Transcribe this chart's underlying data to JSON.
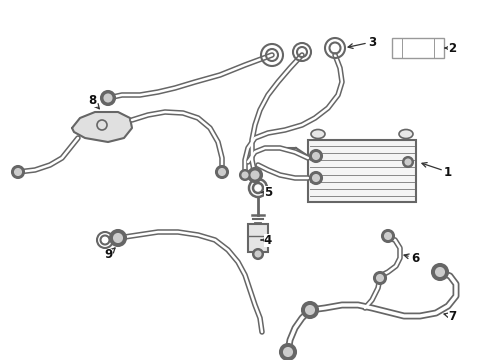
{
  "background_color": "#ffffff",
  "line_color": "#888888",
  "line_color_dark": "#666666",
  "label_color": "#111111",
  "label_fontsize": 8.5
}
